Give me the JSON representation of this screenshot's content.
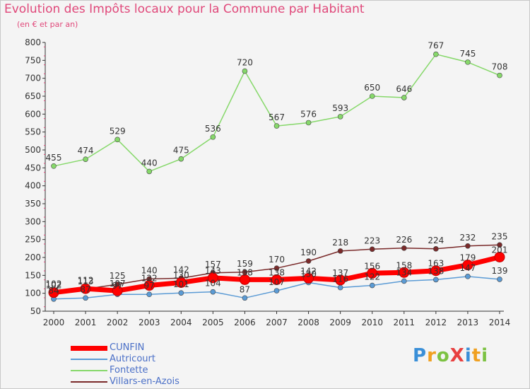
{
  "title": "Evolution des Impôts locaux pour la Commune par Habitant",
  "subtitle": "(en € et par an)",
  "logo": {
    "text": "ProXiti",
    "letters": [
      "P",
      "r",
      "o",
      "X",
      "i",
      "t",
      "i"
    ],
    "colors": [
      "#3a8fd8",
      "#f0a020",
      "#7cc242",
      "#e84040",
      "#3a8fd8",
      "#f0a020",
      "#7cc242"
    ]
  },
  "colors": {
    "title": "#e0487a",
    "cunfin": "#ff0000",
    "autricourt": "#5b9bd5",
    "fontette": "#86d86a",
    "villars": "#7a2a2a"
  },
  "chart_data": {
    "type": "line",
    "title": "Evolution des Impôts locaux pour la Commune par Habitant",
    "ylabel": "(en € et par an)",
    "xlabel": "",
    "ylim": [
      50,
      800
    ],
    "yticks": [
      50,
      100,
      150,
      200,
      250,
      300,
      350,
      400,
      450,
      500,
      550,
      600,
      650,
      700,
      750,
      800
    ],
    "grid": false,
    "legend": "bottom-left",
    "categories": [
      "2000",
      "2001",
      "2002",
      "2003",
      "2004",
      "2005",
      "2006",
      "2007",
      "2008",
      "2009",
      "2010",
      "2011",
      "2012",
      "2013",
      "2014"
    ],
    "series": [
      {
        "name": "CUNFIN",
        "color": "#ff0000",
        "width": 7,
        "marker": 7,
        "values": [
          102,
          113,
          107,
          122,
          130,
          143,
          138,
          138,
          142,
          137,
          156,
          158,
          163,
          179,
          201
        ],
        "labels": [
          "102",
          "113",
          "107",
          "122",
          "130",
          "143",
          "138",
          "138",
          "142",
          "137",
          "156",
          "158",
          "163",
          "179",
          "201"
        ]
      },
      {
        "name": "Autricourt",
        "color": "#5b9bd5",
        "width": 1.5,
        "marker": 3.5,
        "values": [
          84,
          87,
          97,
          97,
          101,
          104,
          87,
          107,
          130,
          116,
          122,
          134,
          138,
          147,
          139
        ],
        "labels": [
          "84",
          "87",
          "97",
          "97",
          "101",
          "104",
          "87",
          "107",
          "130",
          "116",
          "122",
          "134",
          "138",
          "147",
          "139"
        ]
      },
      {
        "name": "Fontette",
        "color": "#86d86a",
        "width": 1.5,
        "marker": 3.5,
        "values": [
          455,
          474,
          529,
          440,
          475,
          536,
          720,
          567,
          576,
          593,
          650,
          646,
          767,
          745,
          708
        ],
        "labels": [
          "455",
          "474",
          "529",
          "440",
          "475",
          "536",
          "720",
          "567",
          "576",
          "593",
          "650",
          "646",
          "767",
          "745",
          "708"
        ]
      },
      {
        "name": "Villars-en-Azois",
        "color": "#7a2a2a",
        "width": 1.5,
        "marker": 3.5,
        "values": [
          102,
          112,
          125,
          140,
          142,
          157,
          159,
          170,
          190,
          218,
          223,
          226,
          224,
          232,
          235
        ],
        "labels": [
          "102",
          "112",
          "125",
          "140",
          "142",
          "157",
          "159",
          "170",
          "190",
          "218",
          "223",
          "226",
          "224",
          "232",
          "235"
        ]
      }
    ]
  }
}
